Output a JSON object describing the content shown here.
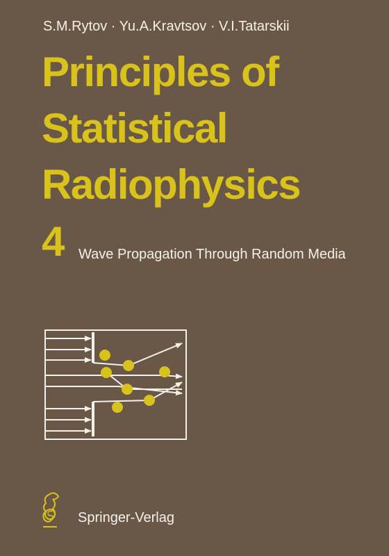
{
  "authors": "S.M.Rytov · Yu.A.Kravtsov · V.I.Tatarskii",
  "title": {
    "lines": [
      "Principles of",
      "Statistical",
      "Radiophysics"
    ]
  },
  "volume": "4",
  "subtitle": "Wave Propagation Through Random Media",
  "publisher": "Springer-Verlag"
}
